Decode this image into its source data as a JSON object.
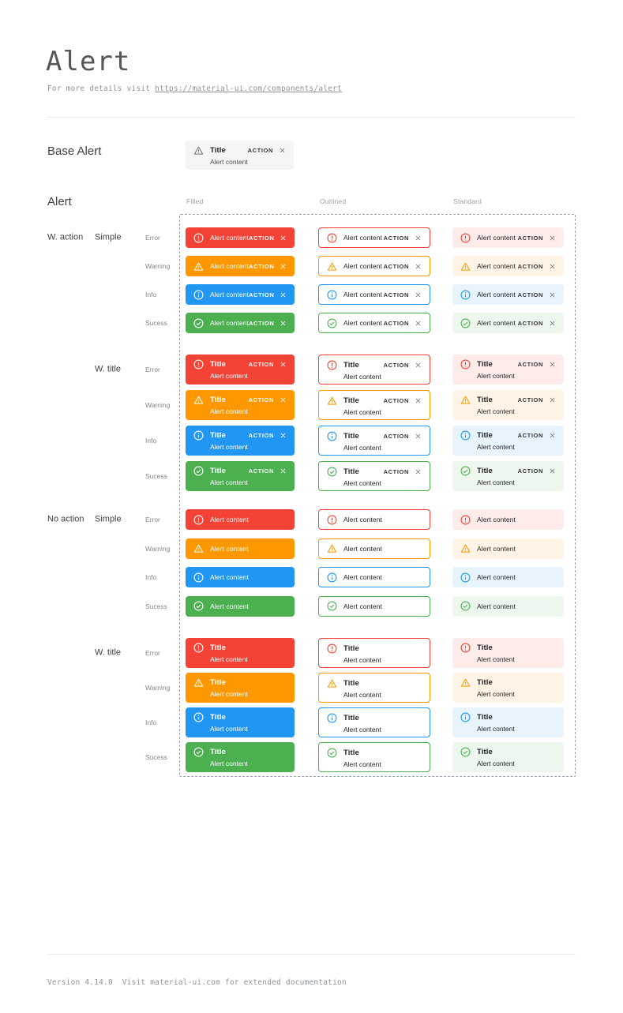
{
  "header": {
    "title": "Alert",
    "subtitle_prefix": "For more details visit ",
    "subtitle_link": "https://material-ui.com/components/alert"
  },
  "base_alert": {
    "section_label": "Base Alert",
    "title": "Title",
    "content": "Alert content",
    "action_label": "ACTION"
  },
  "alert_sheet": {
    "section_label": "Alert",
    "variant_headers": [
      "Filled",
      "Outlined",
      "Standard"
    ],
    "alert_title": "Title",
    "alert_content": "Alert content",
    "action_label": "ACTION",
    "severities": [
      {
        "label": "Error",
        "key": "error",
        "color": "#f44336",
        "standard_bg": "#fdecea"
      },
      {
        "label": "Warning",
        "key": "warning",
        "color": "#ff9800",
        "standard_bg": "#fff4e5"
      },
      {
        "label": "Info",
        "key": "info",
        "color": "#2196f3",
        "standard_bg": "#e8f4fd"
      },
      {
        "label": "Sucess",
        "key": "success",
        "color": "#4caf50",
        "standard_bg": "#edf7ed"
      }
    ],
    "groups": [
      {
        "action_label": "W. action",
        "style_label": "Simple",
        "with_title": false,
        "with_action": true
      },
      {
        "action_label": "",
        "style_label": "W. title",
        "with_title": true,
        "with_action": true
      },
      {
        "action_label": "No action",
        "style_label": "Simple",
        "with_title": false,
        "with_action": false
      },
      {
        "action_label": "",
        "style_label": "W. title",
        "with_title": true,
        "with_action": false
      }
    ]
  },
  "footer": {
    "text": "Version 4.14.0  Visit material-ui.com for extended documentation"
  },
  "colors": {
    "filled_text": "#ffffff",
    "body_text": "rgba(0,0,0,0.87)",
    "base_alert_bg": "#f5f5f5",
    "dashed_border": "#97a2b0"
  }
}
